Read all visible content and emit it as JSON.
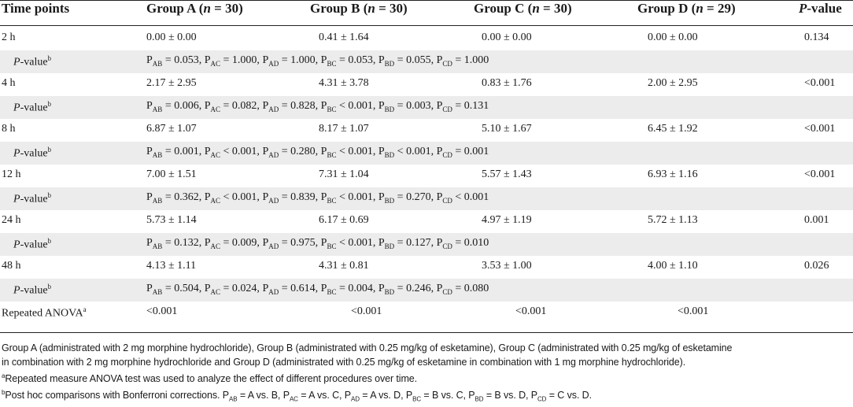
{
  "header": {
    "time": "Time points",
    "group_a": "Group A (",
    "group_b": "Group B (",
    "group_c": "Group C (",
    "group_d": "Group D (",
    "n_label": "n",
    "n_a": " = 30)",
    "n_b": " = 30)",
    "n_c": " = 30)",
    "n_d": " = 29)",
    "p_italic": "P",
    "p_rest": "-value"
  },
  "labels": {
    "p_italic": "P",
    "p_rest": "-value",
    "p_sup": "b",
    "anova": "Repeated ANOVA",
    "anova_sup": "a"
  },
  "rows": [
    {
      "time": "2 h",
      "a": "0.00 ± 0.00",
      "b": "0.41 ± 1.64",
      "c": "0.00 ± 0.00",
      "d": "0.00 ± 0.00",
      "p": "0.134",
      "post": {
        "ab": " = 0.053, ",
        "ac": " = 1.000, ",
        "ad": " = 1.000, ",
        "bc": " = 0.053, ",
        "bd": " = 0.055, ",
        "cd": " = 1.000"
      }
    },
    {
      "time": "4 h",
      "a": "2.17 ± 2.95",
      "b": "4.31 ± 3.78",
      "c": "0.83 ± 1.76",
      "d": "2.00 ± 2.95",
      "p": "<0.001",
      "post": {
        "ab": " = 0.006, ",
        "ac": " = 0.082, ",
        "ad": " = 0.828, ",
        "bc": " < 0.001, ",
        "bd": " = 0.003, ",
        "cd": " = 0.131"
      }
    },
    {
      "time": "8 h",
      "a": "6.87 ± 1.07",
      "b": "8.17 ± 1.07",
      "c": "5.10 ± 1.67",
      "d": "6.45 ± 1.92",
      "p": "<0.001",
      "post": {
        "ab": " = 0.001, ",
        "ac": " < 0.001, ",
        "ad": " = 0.280, ",
        "bc": " < 0.001, ",
        "bd": " < 0.001, ",
        "cd": " = 0.001"
      }
    },
    {
      "time": "12 h",
      "a": "7.00 ± 1.51",
      "b": "7.31 ± 1.04",
      "c": "5.57 ± 1.43",
      "d": "6.93 ± 1.16",
      "p": "<0.001",
      "post": {
        "ab": " = 0.362, ",
        "ac": " < 0.001, ",
        "ad": " = 0.839, ",
        "bc": " < 0.001, ",
        "bd": " = 0.270, ",
        "cd": " < 0.001"
      }
    },
    {
      "time": "24 h",
      "a": "5.73 ± 1.14",
      "b": "6.17 ± 0.69",
      "c": "4.97 ± 1.19",
      "d": "5.72 ± 1.13",
      "p": "0.001",
      "post": {
        "ab": " = 0.132, ",
        "ac": " = 0.009, ",
        "ad": " = 0.975, ",
        "bc": " < 0.001, ",
        "bd": " = 0.127, ",
        "cd": " = 0.010"
      }
    },
    {
      "time": "48 h",
      "a": "4.13 ± 1.11",
      "b": "4.31 ± 0.81",
      "c": "3.53 ± 1.00",
      "d": "4.00 ± 1.10",
      "p": "0.026",
      "post": {
        "ab": " = 0.504, ",
        "ac": " = 0.024, ",
        "ad": " = 0.614, ",
        "bc": " = 0.004, ",
        "bd": " = 0.246, ",
        "cd": " = 0.080"
      }
    }
  ],
  "anova": {
    "a": "<0.001",
    "b": "<0.001",
    "c": "<0.001",
    "d": "<0.001"
  },
  "subscripts": {
    "p": "P",
    "ab": "AB",
    "ac": "AC",
    "ad": "AD",
    "bc": "BC",
    "bd": "BD",
    "cd": "CD"
  },
  "footnotes": {
    "groups_line1": "Group A (administrated with 2 mg morphine hydrochloride), Group B (administrated with 0.25 mg/kg of esketamine), Group C (administrated with 0.25 mg/kg of esketamine",
    "groups_line2": "in combination with 2 mg morphine hydrochloride and Group D (administrated with 0.25 mg/kg of esketamine in combination with 1 mg morphine hydrochloride).",
    "a_sup": "a",
    "a_text": "Repeated measure ANOVA test was used to analyze the effect of different procedures over time.",
    "b_sup": "b",
    "b_text": "Post hoc comparisons with Bonferroni corrections. ",
    "b_ab": " = A vs. B, ",
    "b_ac": " = A vs. C, ",
    "b_ad": " = A vs. D, ",
    "b_bc": " = B vs. C, ",
    "b_bd": " = B vs. D, ",
    "b_cd": " = C vs. D."
  }
}
